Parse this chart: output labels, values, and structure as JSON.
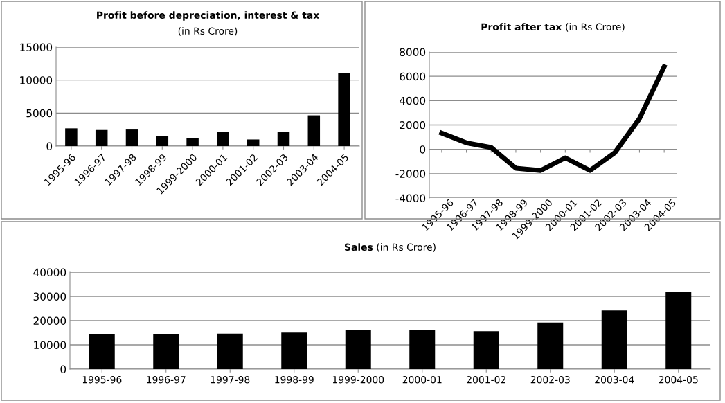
{
  "chart_data": [
    {
      "type": "bar",
      "title": "Profit before depreciation, interest & tax",
      "subtitle": "(in Rs Crore)",
      "categories": [
        "1995-96",
        "1996-97",
        "1997-98",
        "1998-99",
        "1999-2000",
        "2000-01",
        "2001-02",
        "2002-03",
        "2003-04",
        "2004-05"
      ],
      "values": [
        2690,
        2440,
        2510,
        1500,
        1180,
        2150,
        1000,
        2150,
        4660,
        11110
      ],
      "color": "#000000",
      "ylim": [
        0,
        15000
      ],
      "yticks": [
        0,
        5000,
        10000,
        15000
      ],
      "grid": "y"
    },
    {
      "type": "line",
      "title": "Profit after tax",
      "subtitle": "(in Rs Crore)",
      "categories": [
        "1995-96",
        "1996-97",
        "1997-98",
        "1998-99",
        "1999-2000",
        "2000-01",
        "2001-02",
        "2002-03",
        "2003-04",
        "2004-05"
      ],
      "values": [
        1330,
        530,
        150,
        -1550,
        -1740,
        -700,
        -1740,
        -280,
        2520,
        6790
      ],
      "color": "#000000",
      "ylim": [
        -4000,
        8000
      ],
      "yticks": [
        -4000,
        -2000,
        0,
        2000,
        4000,
        6000,
        8000
      ],
      "grid": "y",
      "marker": "none",
      "line_style": "solid"
    },
    {
      "type": "bar",
      "title": "Sales",
      "subtitle": "(in Rs Crore)",
      "categories": [
        "1995-96",
        "1996-97",
        "1997-98",
        "1998-99",
        "1999-2000",
        "2000-01",
        "2001-02",
        "2002-03",
        "2003-04",
        "2004-05"
      ],
      "values": [
        14290,
        14290,
        14670,
        15050,
        16190,
        16190,
        15620,
        19240,
        24190,
        31810
      ],
      "color": "#000000",
      "ylim": [
        0,
        40000
      ],
      "yticks": [
        0,
        10000,
        20000,
        30000,
        40000
      ],
      "grid": "y"
    }
  ]
}
